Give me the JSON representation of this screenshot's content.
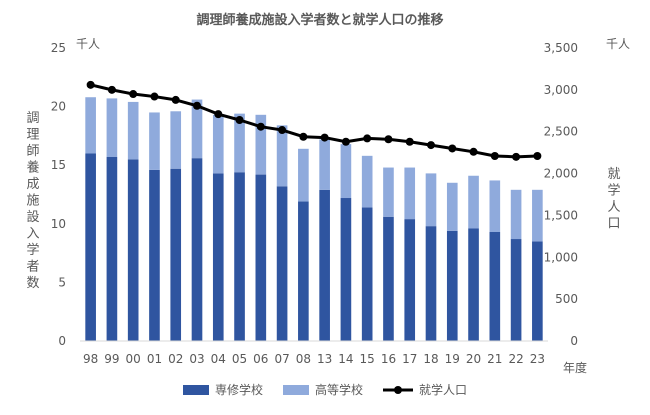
{
  "chart_data": {
    "type": "bar",
    "title": "調理師養成施設入学者数と就学人口の推移",
    "categories": [
      "98",
      "99",
      "00",
      "01",
      "02",
      "03",
      "04",
      "05",
      "06",
      "07",
      "08",
      "13",
      "14",
      "15",
      "16",
      "17",
      "18",
      "19",
      "20",
      "21",
      "22",
      "23"
    ],
    "series": [
      {
        "name": "専修学校",
        "type": "bar",
        "axis": "left",
        "color": "#2F55A0",
        "values": [
          16.0,
          15.7,
          15.5,
          14.6,
          14.7,
          15.6,
          14.3,
          14.4,
          14.2,
          13.2,
          11.9,
          12.9,
          12.2,
          11.4,
          10.6,
          10.4,
          9.8,
          9.4,
          9.6,
          9.3,
          8.7,
          8.5
        ]
      },
      {
        "name": "高等学校",
        "type": "bar",
        "axis": "left",
        "color": "#8FAADC",
        "values": [
          4.8,
          5.0,
          4.9,
          4.9,
          4.9,
          5.0,
          5.0,
          5.0,
          5.1,
          5.2,
          4.5,
          4.3,
          4.6,
          4.4,
          4.2,
          4.4,
          4.5,
          4.1,
          4.5,
          4.4,
          4.2,
          4.4
        ]
      },
      {
        "name": "就学人口",
        "type": "line",
        "axis": "right",
        "color": "#000000",
        "values": [
          3060,
          3000,
          2950,
          2920,
          2880,
          2810,
          2710,
          2640,
          2560,
          2520,
          2440,
          2430,
          2380,
          2420,
          2410,
          2380,
          2340,
          2300,
          2260,
          2210,
          2200,
          2210
        ]
      }
    ],
    "y_left": {
      "min": 0,
      "max": 25,
      "step": 5,
      "unit": "千人",
      "label": "調理師養成施設入学者数"
    },
    "y_right": {
      "min": 0,
      "max": 3500,
      "step": 500,
      "unit": "千人",
      "label": "就学人口"
    },
    "x_unit": "年度",
    "legend": {
      "position": "bottom",
      "entries": [
        "専修学校",
        "高等学校",
        "就学人口"
      ]
    },
    "grid": false,
    "stacked": true
  }
}
